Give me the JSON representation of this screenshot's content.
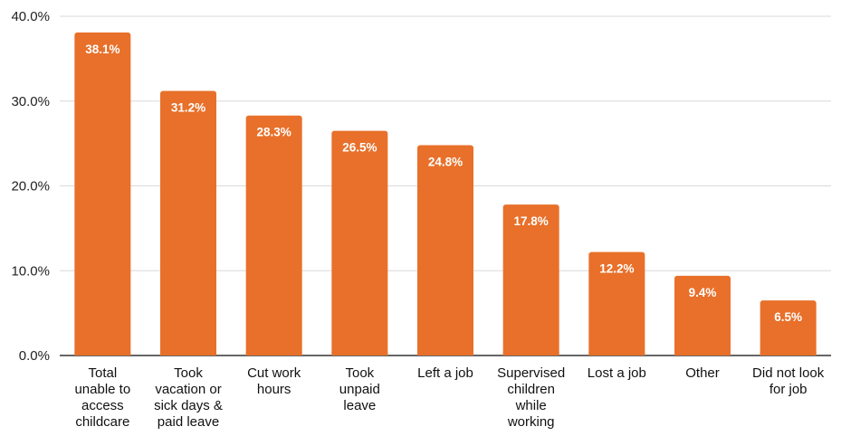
{
  "chart_data": {
    "type": "bar",
    "title": "",
    "xlabel": "",
    "ylabel": "",
    "categories": [
      [
        "Total",
        "unable to",
        "access",
        "childcare"
      ],
      [
        "Took",
        "vacation or",
        "sick days &",
        "paid leave"
      ],
      [
        "Cut work",
        "hours"
      ],
      [
        "Took",
        "unpaid",
        "leave"
      ],
      [
        "Left a job"
      ],
      [
        "Supervised",
        "children",
        "while",
        "working"
      ],
      [
        "Lost a job"
      ],
      [
        "Other"
      ],
      [
        "Did not look",
        "for job"
      ]
    ],
    "values": [
      38.1,
      31.2,
      28.3,
      26.5,
      24.8,
      17.8,
      12.2,
      9.4,
      6.5
    ],
    "data_labels": [
      "38.1%",
      "31.2%",
      "28.3%",
      "26.5%",
      "24.8%",
      "17.8%",
      "12.2%",
      "9.4%",
      "6.5%"
    ],
    "y_ticks": [
      0,
      10,
      20,
      30,
      40
    ],
    "y_tick_labels": [
      "0.0%",
      "10.0%",
      "20.0%",
      "30.0%",
      "40.0%"
    ],
    "ylim": [
      0,
      40
    ],
    "grid": true,
    "legend": "none",
    "bar_color": "#e8702a",
    "grid_color": "#d9d9d9",
    "axis_color": "#333333"
  }
}
